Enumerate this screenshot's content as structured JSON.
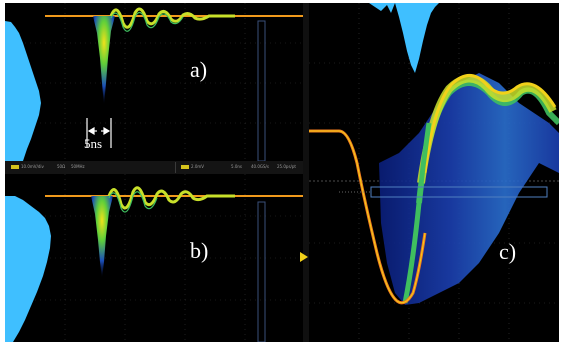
{
  "panels": {
    "a": {
      "label": "a)"
    },
    "b": {
      "label": "b)"
    },
    "c": {
      "label": "c)"
    }
  },
  "scale_marker": {
    "text": "5ns"
  },
  "status_bar": {
    "items": [
      "10.0mV/div",
      "50Ω",
      "50MHz",
      "2.0mV",
      "5.0ns",
      "40.0GS/s",
      "25.0ps/pt"
    ]
  },
  "colors": {
    "background": "#000000",
    "histogram": "#3fbfff",
    "trace_hot": "#f2d11a",
    "trace_mid": "#3fbf5f",
    "trace_cool": "#1e3fa8",
    "trace_edge": "#f07a1e",
    "marker": "#f2d11a"
  }
}
